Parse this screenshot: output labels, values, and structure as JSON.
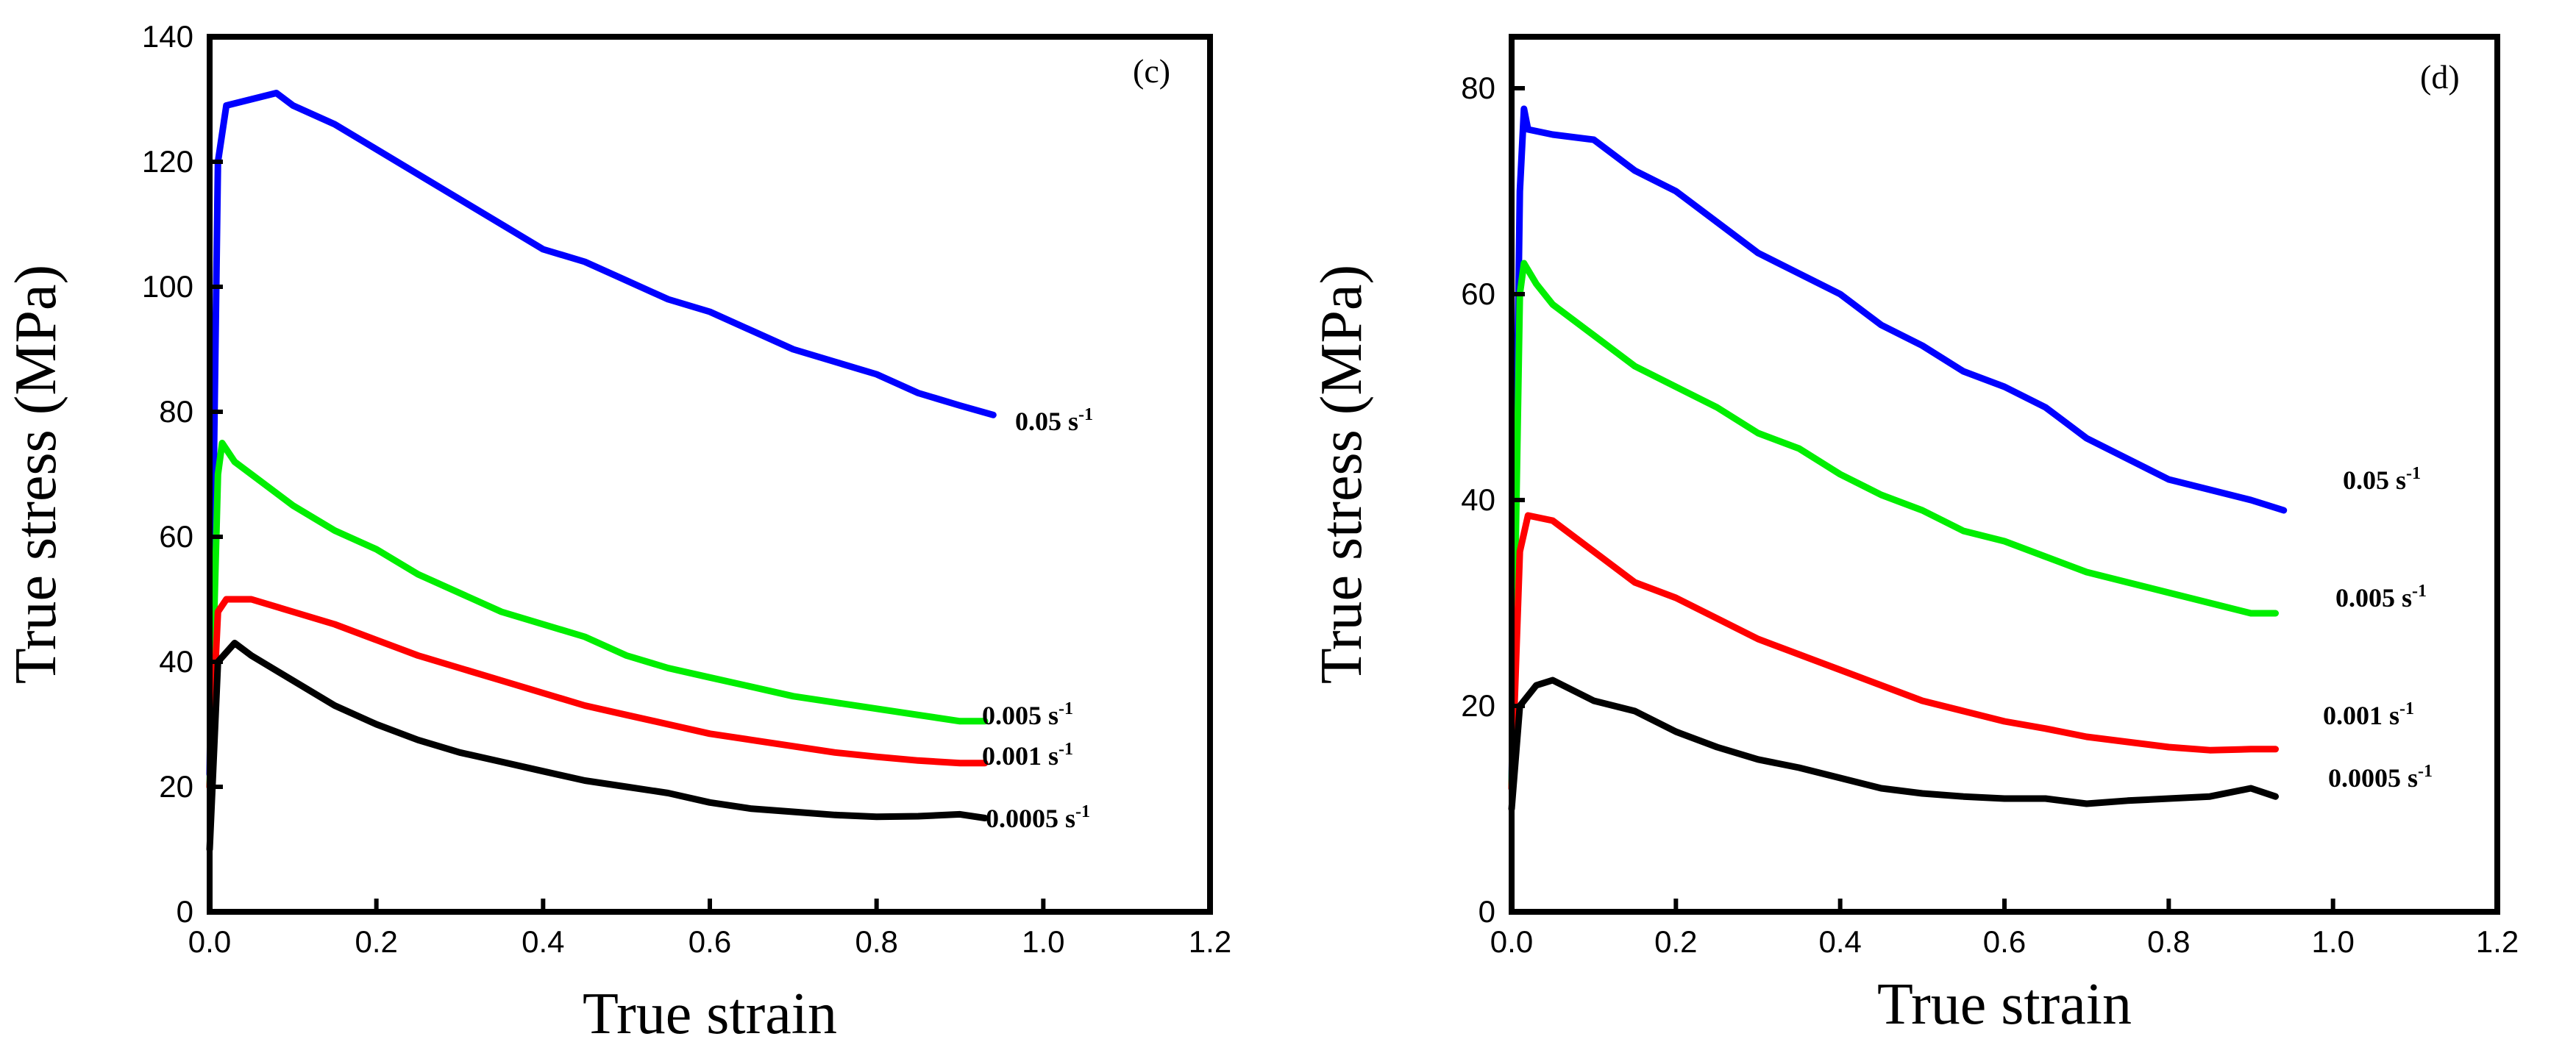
{
  "chart_data": [
    {
      "type": "line",
      "panel_label": "(c)",
      "xlabel": "True strain",
      "ylabel": "True stress (MPa)",
      "xlim": [
        0,
        1.2
      ],
      "ylim": [
        0,
        140
      ],
      "x_ticks": [
        0.0,
        0.2,
        0.4,
        0.6,
        0.8,
        1.0,
        1.2
      ],
      "x_tick_labels": [
        "0.0",
        "0.2",
        "0.4",
        "0.6",
        "0.8",
        "1.0",
        "1.2"
      ],
      "y_ticks": [
        0,
        20,
        40,
        60,
        80,
        100,
        120,
        140
      ],
      "y_tick_labels": [
        "0",
        "20",
        "40",
        "60",
        "80",
        "100",
        "120",
        "140"
      ],
      "grid": false,
      "legend": "inline labels at right end of each curve",
      "series": [
        {
          "name": "0.05 s-1",
          "label_base": "0.05 s",
          "label_sup": "-1",
          "color": "#0000ff",
          "x": [
            0,
            0.01,
            0.02,
            0.05,
            0.08,
            0.1,
            0.15,
            0.2,
            0.25,
            0.3,
            0.35,
            0.4,
            0.45,
            0.5,
            0.55,
            0.6,
            0.65,
            0.7,
            0.75,
            0.8,
            0.85,
            0.9,
            0.94
          ],
          "y": [
            22,
            120,
            129,
            130,
            131,
            129,
            126,
            122,
            118,
            114,
            110,
            106,
            104,
            101,
            98,
            96,
            93,
            90,
            88,
            86,
            83,
            81,
            79.5
          ]
        },
        {
          "name": "0.005 s-1",
          "label_base": "0.005 s",
          "label_sup": "-1",
          "color": "#00ee00",
          "x": [
            0,
            0.01,
            0.015,
            0.03,
            0.05,
            0.1,
            0.15,
            0.2,
            0.25,
            0.3,
            0.35,
            0.4,
            0.45,
            0.5,
            0.55,
            0.6,
            0.65,
            0.7,
            0.75,
            0.8,
            0.85,
            0.9,
            0.93
          ],
          "y": [
            20,
            70,
            75,
            72,
            70,
            65,
            61,
            58,
            54,
            51,
            48,
            46,
            44,
            41,
            39,
            37.5,
            36,
            34.5,
            33.5,
            32.5,
            31.5,
            30.5,
            30.5
          ]
        },
        {
          "name": "0.001 s-1",
          "label_base": "0.001 s",
          "label_sup": "-1",
          "color": "#ff0000",
          "x": [
            0,
            0.01,
            0.02,
            0.05,
            0.1,
            0.15,
            0.2,
            0.25,
            0.3,
            0.35,
            0.4,
            0.45,
            0.5,
            0.55,
            0.6,
            0.65,
            0.7,
            0.75,
            0.8,
            0.85,
            0.9,
            0.93
          ],
          "y": [
            20,
            48,
            50,
            50,
            48,
            46,
            43.5,
            41,
            39,
            37,
            35,
            33,
            31.5,
            30,
            28.5,
            27.5,
            26.5,
            25.5,
            24.8,
            24.2,
            23.8,
            23.8
          ]
        },
        {
          "name": "0.0005 s-1",
          "label_base": "0.0005 s",
          "label_sup": "-1",
          "color": "#000000",
          "x": [
            0,
            0.01,
            0.03,
            0.05,
            0.1,
            0.15,
            0.2,
            0.25,
            0.3,
            0.35,
            0.4,
            0.45,
            0.5,
            0.55,
            0.6,
            0.65,
            0.7,
            0.75,
            0.8,
            0.85,
            0.9,
            0.93
          ],
          "y": [
            10,
            40,
            43,
            41,
            37,
            33,
            30,
            27.5,
            25.5,
            24,
            22.5,
            21,
            20,
            19,
            17.5,
            16.5,
            16,
            15.5,
            15.2,
            15.3,
            15.6,
            15
          ]
        }
      ]
    },
    {
      "type": "line",
      "panel_label": "(d)",
      "xlabel": "True strain",
      "ylabel": "True stress (MPa)",
      "xlim": [
        0,
        1.2
      ],
      "ylim": [
        0,
        85
      ],
      "x_ticks": [
        0.0,
        0.2,
        0.4,
        0.6,
        0.8,
        1.0,
        1.2
      ],
      "x_tick_labels": [
        "0.0",
        "0.2",
        "0.4",
        "0.6",
        "0.8",
        "1.0",
        "1.2"
      ],
      "y_ticks": [
        0,
        20,
        40,
        60,
        80
      ],
      "y_tick_labels": [
        "0",
        "20",
        "40",
        "60",
        "80"
      ],
      "grid": false,
      "legend": "inline labels at right end of each curve",
      "series": [
        {
          "name": "0.05 s-1",
          "label_base": "0.05 s",
          "label_sup": "-1",
          "color": "#0000ff",
          "x": [
            0,
            0.01,
            0.015,
            0.02,
            0.05,
            0.1,
            0.15,
            0.2,
            0.25,
            0.3,
            0.35,
            0.4,
            0.45,
            0.5,
            0.55,
            0.6,
            0.65,
            0.7,
            0.75,
            0.8,
            0.85,
            0.9,
            0.94
          ],
          "y": [
            12,
            70,
            78,
            76,
            75.5,
            75,
            72,
            70,
            67,
            64,
            62,
            60,
            57,
            55,
            52.5,
            51,
            49,
            46,
            44,
            42,
            41,
            40,
            39
          ]
        },
        {
          "name": "0.005 s-1",
          "label_base": "0.005 s",
          "label_sup": "-1",
          "color": "#00ee00",
          "x": [
            0,
            0.01,
            0.015,
            0.03,
            0.05,
            0.1,
            0.15,
            0.2,
            0.25,
            0.3,
            0.35,
            0.4,
            0.45,
            0.5,
            0.55,
            0.6,
            0.65,
            0.7,
            0.75,
            0.8,
            0.85,
            0.9,
            0.93
          ],
          "y": [
            12,
            60,
            63,
            61,
            59,
            56,
            53,
            51,
            49,
            46.5,
            45,
            42.5,
            40.5,
            39,
            37,
            36,
            34.5,
            33,
            32,
            31,
            30,
            29,
            29
          ]
        },
        {
          "name": "0.001 s-1",
          "label_base": "0.001 s",
          "label_sup": "-1",
          "color": "#ff0000",
          "x": [
            0,
            0.01,
            0.02,
            0.05,
            0.1,
            0.15,
            0.2,
            0.25,
            0.3,
            0.35,
            0.4,
            0.45,
            0.5,
            0.55,
            0.6,
            0.65,
            0.7,
            0.75,
            0.8,
            0.85,
            0.9,
            0.93
          ],
          "y": [
            12,
            35,
            38.5,
            38,
            35,
            32,
            30.5,
            28.5,
            26.5,
            25,
            23.5,
            22,
            20.5,
            19.5,
            18.5,
            17.8,
            17,
            16.5,
            16,
            15.7,
            15.8,
            15.8
          ]
        },
        {
          "name": "0.0005 s-1",
          "label_base": "0.0005 s",
          "label_sup": "-1",
          "color": "#000000",
          "x": [
            0,
            0.01,
            0.03,
            0.05,
            0.1,
            0.15,
            0.2,
            0.25,
            0.3,
            0.35,
            0.4,
            0.45,
            0.5,
            0.55,
            0.6,
            0.65,
            0.7,
            0.75,
            0.8,
            0.85,
            0.9,
            0.93
          ],
          "y": [
            10,
            20,
            22,
            22.5,
            20.5,
            19.5,
            17.5,
            16,
            14.8,
            14,
            13,
            12,
            11.5,
            11.2,
            11,
            11,
            10.5,
            10.8,
            11,
            11.2,
            12,
            11.2
          ]
        }
      ]
    }
  ]
}
